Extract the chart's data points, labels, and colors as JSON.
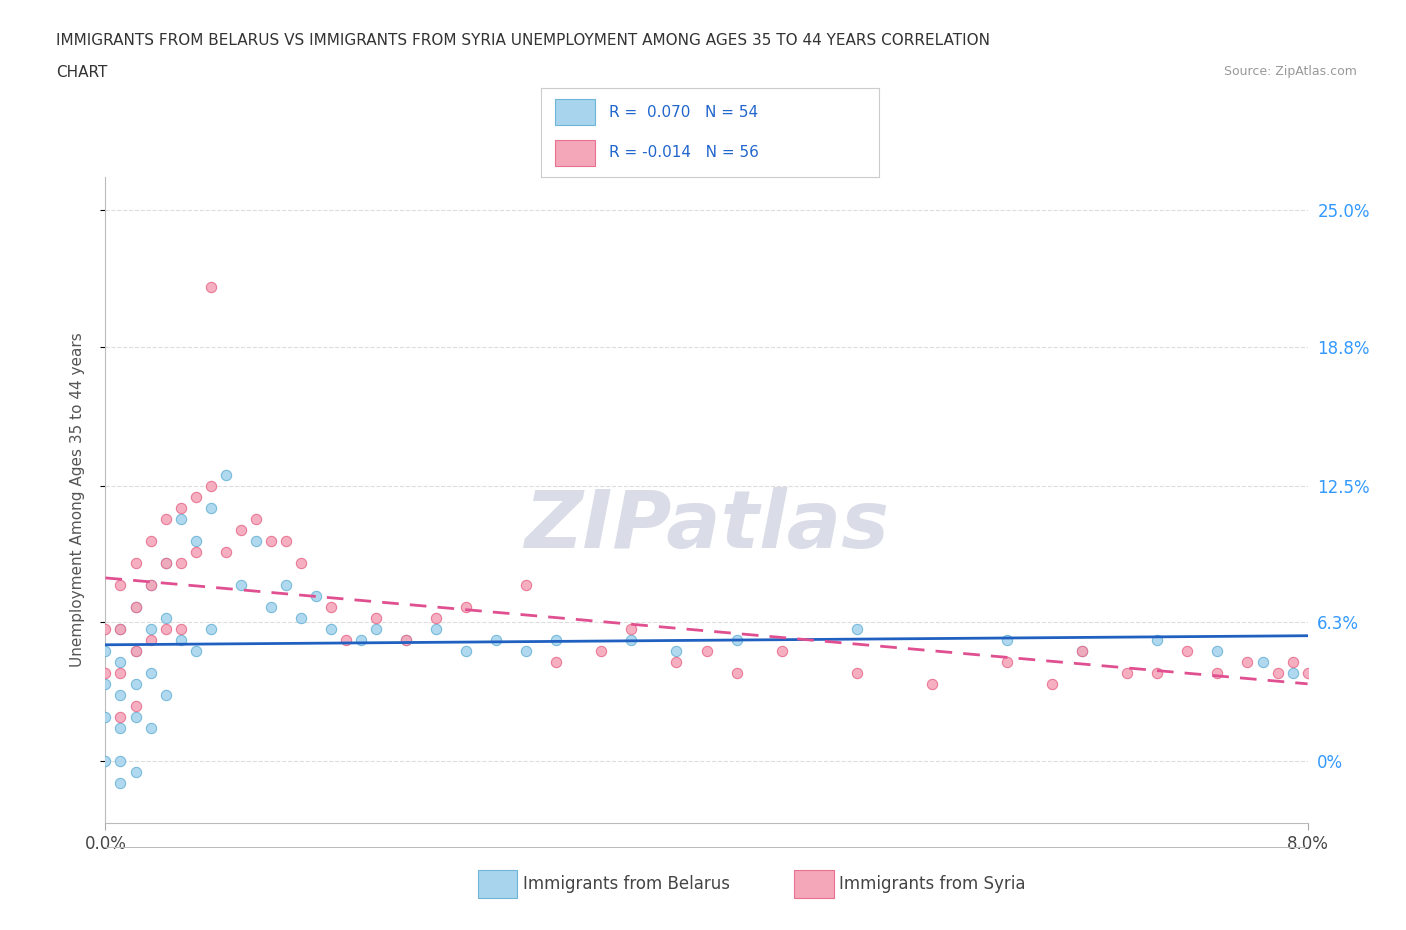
{
  "title_line1": "IMMIGRANTS FROM BELARUS VS IMMIGRANTS FROM SYRIA UNEMPLOYMENT AMONG AGES 35 TO 44 YEARS CORRELATION",
  "title_line2": "CHART",
  "source": "Source: ZipAtlas.com",
  "ylabel": "Unemployment Among Ages 35 to 44 years",
  "xmin": 0.0,
  "xmax": 0.08,
  "ymin": -0.028,
  "ymax": 0.265,
  "yticks": [
    0.0,
    0.063,
    0.125,
    0.188,
    0.25
  ],
  "ytick_labels": [
    "0%",
    "6.3%",
    "12.5%",
    "18.8%",
    "25.0%"
  ],
  "xtick_labels": [
    "0.0%",
    "8.0%"
  ],
  "right_ytick_labels": [
    "0%",
    "6.3%",
    "12.5%",
    "18.8%",
    "25.0%"
  ],
  "belarus_color": "#A8D4ED",
  "syria_color": "#F4A7B9",
  "belarus_edge": "#6EB5D8",
  "syria_edge": "#E87090",
  "trend_belarus_color": "#2060C0",
  "trend_syria_color": "#E05090",
  "legend_r_belarus": "R =  0.070",
  "legend_n_belarus": "N = 54",
  "legend_r_syria": "R = -0.014",
  "legend_n_syria": "N = 56",
  "watermark_text": "ZIPatlas",
  "watermark_color": "#DADDE8",
  "grid_color": "#DDDDDD",
  "background_color": "#FFFFFF",
  "belarus_x": [
    0.0,
    0.0,
    0.0,
    0.0,
    0.001,
    0.001,
    0.001,
    0.001,
    0.001,
    0.001,
    0.002,
    0.002,
    0.002,
    0.002,
    0.002,
    0.003,
    0.003,
    0.003,
    0.003,
    0.004,
    0.004,
    0.004,
    0.005,
    0.005,
    0.006,
    0.006,
    0.007,
    0.007,
    0.008,
    0.009,
    0.01,
    0.011,
    0.012,
    0.013,
    0.014,
    0.015,
    0.017,
    0.018,
    0.02,
    0.022,
    0.024,
    0.026,
    0.028,
    0.03,
    0.035,
    0.038,
    0.042,
    0.05,
    0.06,
    0.065,
    0.07,
    0.074,
    0.077,
    0.079
  ],
  "belarus_y": [
    0.05,
    0.035,
    0.02,
    0.0,
    0.06,
    0.045,
    0.03,
    0.015,
    0.0,
    -0.01,
    0.07,
    0.05,
    0.035,
    0.02,
    -0.005,
    0.08,
    0.06,
    0.04,
    0.015,
    0.09,
    0.065,
    0.03,
    0.11,
    0.055,
    0.1,
    0.05,
    0.115,
    0.06,
    0.13,
    0.08,
    0.1,
    0.07,
    0.08,
    0.065,
    0.075,
    0.06,
    0.055,
    0.06,
    0.055,
    0.06,
    0.05,
    0.055,
    0.05,
    0.055,
    0.055,
    0.05,
    0.055,
    0.06,
    0.055,
    0.05,
    0.055,
    0.05,
    0.045,
    0.04
  ],
  "syria_x": [
    0.0,
    0.0,
    0.001,
    0.001,
    0.001,
    0.001,
    0.002,
    0.002,
    0.002,
    0.002,
    0.003,
    0.003,
    0.003,
    0.004,
    0.004,
    0.004,
    0.005,
    0.005,
    0.005,
    0.006,
    0.006,
    0.007,
    0.007,
    0.008,
    0.009,
    0.01,
    0.011,
    0.012,
    0.013,
    0.015,
    0.016,
    0.018,
    0.02,
    0.022,
    0.024,
    0.028,
    0.03,
    0.033,
    0.035,
    0.038,
    0.04,
    0.042,
    0.045,
    0.05,
    0.055,
    0.06,
    0.063,
    0.065,
    0.068,
    0.07,
    0.072,
    0.074,
    0.076,
    0.078,
    0.079,
    0.08
  ],
  "syria_y": [
    0.06,
    0.04,
    0.08,
    0.06,
    0.04,
    0.02,
    0.09,
    0.07,
    0.05,
    0.025,
    0.1,
    0.08,
    0.055,
    0.11,
    0.09,
    0.06,
    0.115,
    0.09,
    0.06,
    0.12,
    0.095,
    0.215,
    0.125,
    0.095,
    0.105,
    0.11,
    0.1,
    0.1,
    0.09,
    0.07,
    0.055,
    0.065,
    0.055,
    0.065,
    0.07,
    0.08,
    0.045,
    0.05,
    0.06,
    0.045,
    0.05,
    0.04,
    0.05,
    0.04,
    0.035,
    0.045,
    0.035,
    0.05,
    0.04,
    0.04,
    0.05,
    0.04,
    0.045,
    0.04,
    0.045,
    0.04
  ]
}
